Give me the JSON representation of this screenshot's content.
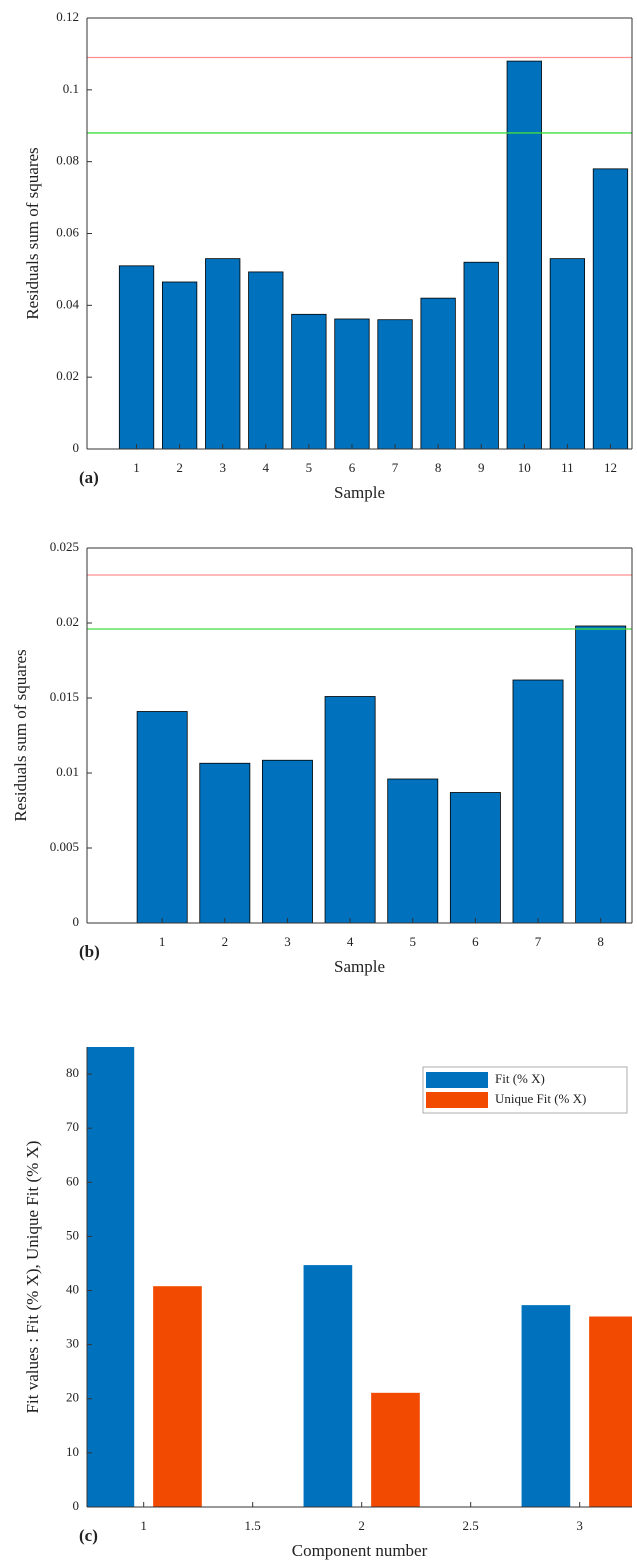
{
  "chart_data": [
    {
      "type": "bar",
      "panel_label": "(a)",
      "xlabel": "Sample",
      "ylabel": "Residuals sum of squares",
      "x": [
        1,
        2,
        3,
        4,
        5,
        6,
        7,
        8,
        9,
        10,
        11,
        12
      ],
      "xlim": [
        -0.15,
        12.5
      ],
      "xticks": [
        1,
        2,
        3,
        4,
        5,
        6,
        7,
        8,
        9,
        10,
        11,
        12
      ],
      "ylim": [
        0,
        0.12
      ],
      "yticks": [
        0,
        0.02,
        0.04,
        0.06,
        0.08,
        0.1,
        0.12
      ],
      "box": true,
      "series": [
        {
          "color": "#0072bd",
          "values": [
            0.051,
            0.0465,
            0.053,
            0.0493,
            0.0375,
            0.0362,
            0.036,
            0.042,
            0.052,
            0.108,
            0.053,
            0.078
          ]
        }
      ],
      "hlines": [
        {
          "value": 0.109,
          "color": "#ff9090"
        },
        {
          "value": 0.088,
          "color": "#40dd40"
        }
      ]
    },
    {
      "type": "bar",
      "panel_label": "(b)",
      "xlabel": "Sample",
      "ylabel": "Residuals sum of squares",
      "x": [
        1,
        2,
        3,
        4,
        5,
        6,
        7,
        8
      ],
      "xlim": [
        -0.2,
        8.5
      ],
      "xticks": [
        1,
        2,
        3,
        4,
        5,
        6,
        7,
        8
      ],
      "ylim": [
        0,
        0.025
      ],
      "yticks": [
        0,
        0.005,
        0.01,
        0.015,
        0.02,
        0.025
      ],
      "box": true,
      "series": [
        {
          "color": "#0072bd",
          "values": [
            0.0141,
            0.01065,
            0.01085,
            0.0151,
            0.0096,
            0.0087,
            0.0162,
            0.0198
          ]
        }
      ],
      "hlines": [
        {
          "value": 0.0232,
          "color": "#ff9090"
        },
        {
          "value": 0.0196,
          "color": "#40dd40"
        }
      ]
    },
    {
      "type": "bar",
      "panel_label": "(c)",
      "xlabel": "Component number",
      "ylabel": "Fit values : Fit (% X), Unique Fit (% X)",
      "x": [
        1,
        2,
        3
      ],
      "xlim": [
        0.74,
        3.24
      ],
      "xticks": [
        1,
        1.5,
        2,
        2.5,
        3
      ],
      "ylim": [
        0,
        85
      ],
      "yticks": [
        0,
        10,
        20,
        30,
        40,
        50,
        60,
        70,
        80
      ],
      "box": false,
      "legend": "upper right",
      "series": [
        {
          "name": "Fit (% X)",
          "color": "#0072bd",
          "values": [
            88,
            44.7,
            37.3
          ]
        },
        {
          "name": "Unique Fit (% X)",
          "color": "#f24a00",
          "values": [
            40.8,
            21.1,
            35.2
          ]
        }
      ]
    }
  ]
}
